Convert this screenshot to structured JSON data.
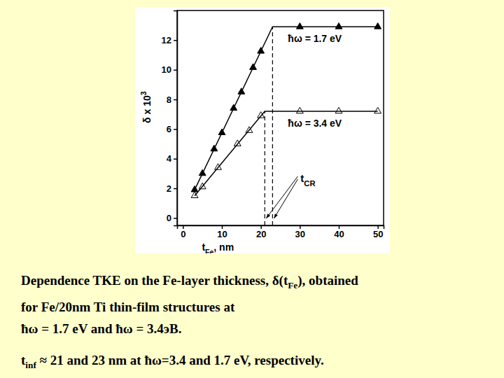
{
  "chart_data": {
    "type": "line",
    "x_label": [
      {
        "text": "t"
      },
      {
        "sub": "Fe"
      },
      {
        "text": ", nm"
      }
    ],
    "y_label": [
      {
        "text": "δ x 10"
      },
      {
        "sup": "3"
      }
    ],
    "xlim": [
      -1.5,
      51.5
    ],
    "xticks": [
      0,
      10,
      20,
      30,
      40,
      50
    ],
    "ylim": [
      -0.5,
      14
    ],
    "yticks": [
      0,
      2,
      4,
      6,
      8,
      10,
      12
    ],
    "grid": false,
    "series": [
      {
        "name": "ħω = 1.7 eV",
        "type": "scatter",
        "marker": "triangle",
        "color": "#000000",
        "x": [
          3,
          5,
          8,
          10,
          13,
          15,
          18,
          20,
          30,
          40,
          50
        ],
        "values": [
          1.9,
          3.0,
          4.65,
          5.75,
          7.4,
          8.5,
          10.15,
          11.25,
          12.9,
          12.9,
          12.9
        ]
      },
      {
        "name": "ħω = 3.4 eV",
        "type": "scatter",
        "marker": "triangle-open",
        "color": "#000000",
        "x": [
          3,
          5,
          9,
          14,
          17,
          20,
          30,
          40,
          50
        ],
        "values": [
          1.5,
          2.1,
          3.4,
          5.0,
          5.9,
          6.9,
          7.2,
          7.2,
          7.2
        ]
      },
      {
        "type": "line",
        "color": "#000000",
        "x": [
          3,
          23,
          50
        ],
        "values": [
          1.9,
          12.9,
          12.9
        ]
      },
      {
        "type": "line",
        "color": "#000000",
        "x": [
          3,
          21,
          50
        ],
        "values": [
          1.5,
          7.2,
          7.2
        ]
      }
    ],
    "t_inf": [
      {
        "x": 21,
        "y": 7.2,
        "line_style": "dashed"
      },
      {
        "x": 23,
        "y": 12.9,
        "line_style": "dashed"
      }
    ],
    "annotation": [
      {
        "text": "t"
      },
      {
        "sub": "CR"
      }
    ]
  },
  "caption": {
    "lines": [
      [
        {
          "text": "Dependence TKE on the Fe-layer thickness, δ(t"
        },
        {
          "sub": "Fe"
        },
        {
          "text": "), obtained"
        }
      ],
      [
        {
          "text": "for Fe/20nm Ti thin-film structures at"
        }
      ],
      [
        {
          "text": "ħω = 1.7 eV and ħω = 3.4эВ."
        }
      ],
      [
        {
          "text": "t"
        },
        {
          "sub": "inf"
        },
        {
          "text": " ≈ 21 and 23 nm at ħω=3.4 and 1.7 eV, respectively."
        }
      ]
    ]
  }
}
